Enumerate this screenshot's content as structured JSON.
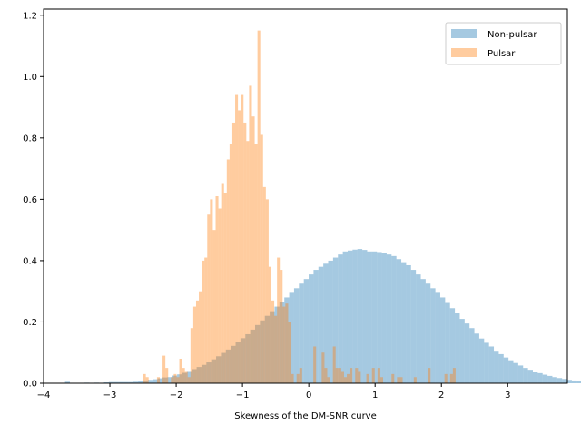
{
  "chart_data": {
    "type": "histogram",
    "title": "",
    "xlabel": "Skewness of the DM-SNR curve",
    "ylabel": "",
    "xlim": [
      -4.0,
      3.9
    ],
    "ylim": [
      0,
      1.22
    ],
    "xticks": [
      -4,
      -3,
      -2,
      -1,
      0,
      1,
      2,
      3
    ],
    "yticks": [
      0.0,
      0.2,
      0.4,
      0.6,
      0.8,
      1.0,
      1.2
    ],
    "grid": false,
    "legend": {
      "placement": "top-right"
    },
    "series": [
      {
        "name": "Non-pulsar",
        "color": "#1f77b4",
        "opacity": 0.4,
        "x_start": -3.75,
        "bin_width": 0.0735,
        "values": [
          0.0,
          0.005,
          0.0,
          0.0,
          0.0,
          0.002,
          0.0,
          0.002,
          0.0,
          0.003,
          0.004,
          0.004,
          0.004,
          0.004,
          0.004,
          0.005,
          0.007,
          0.009,
          0.011,
          0.013,
          0.016,
          0.019,
          0.02,
          0.025,
          0.029,
          0.034,
          0.04,
          0.046,
          0.053,
          0.06,
          0.068,
          0.078,
          0.088,
          0.099,
          0.11,
          0.122,
          0.134,
          0.147,
          0.16,
          0.175,
          0.19,
          0.205,
          0.22,
          0.235,
          0.25,
          0.265,
          0.28,
          0.295,
          0.31,
          0.325,
          0.34,
          0.355,
          0.37,
          0.38,
          0.39,
          0.4,
          0.41,
          0.42,
          0.43,
          0.433,
          0.436,
          0.438,
          0.435,
          0.43,
          0.43,
          0.428,
          0.425,
          0.42,
          0.415,
          0.405,
          0.395,
          0.385,
          0.37,
          0.355,
          0.34,
          0.325,
          0.31,
          0.295,
          0.28,
          0.262,
          0.245,
          0.228,
          0.21,
          0.195,
          0.18,
          0.162,
          0.146,
          0.132,
          0.12,
          0.106,
          0.095,
          0.084,
          0.075,
          0.066,
          0.058,
          0.05,
          0.044,
          0.038,
          0.033,
          0.028,
          0.024,
          0.02,
          0.017,
          0.014,
          0.011,
          0.009,
          0.007,
          0.005,
          0.004,
          0.003,
          0.002,
          0.002,
          0.001,
          0.001
        ]
      },
      {
        "name": "Pulsar",
        "color": "#ff7f0e",
        "opacity": 0.4,
        "x_start": -2.5,
        "bin_width": 0.0421,
        "values": [
          0.03,
          0.02,
          0.0,
          0.0,
          0.0,
          0.02,
          0.0,
          0.09,
          0.05,
          0.0,
          0.02,
          0.03,
          0.02,
          0.08,
          0.05,
          0.04,
          0.02,
          0.18,
          0.25,
          0.27,
          0.3,
          0.4,
          0.41,
          0.55,
          0.6,
          0.5,
          0.61,
          0.57,
          0.65,
          0.62,
          0.73,
          0.78,
          0.85,
          0.94,
          0.89,
          0.94,
          0.85,
          0.79,
          0.97,
          0.87,
          0.78,
          1.15,
          0.81,
          0.64,
          0.6,
          0.38,
          0.27,
          0.22,
          0.41,
          0.37,
          0.25,
          0.26,
          0.2,
          0.03,
          0.0,
          0.03,
          0.05,
          0.0,
          0.0,
          0.0,
          0.0,
          0.12,
          0.0,
          0.0,
          0.1,
          0.05,
          0.02,
          0.0,
          0.12,
          0.05,
          0.05,
          0.04,
          0.02,
          0.03,
          0.05,
          0.0,
          0.05,
          0.04,
          0.0,
          0.0,
          0.03,
          0.0,
          0.05,
          0.0,
          0.05,
          0.02,
          0.0,
          0.0,
          0.0,
          0.03,
          0.0,
          0.02,
          0.02,
          0.0,
          0.0,
          0.0,
          0.0,
          0.02,
          0.0,
          0.0,
          0.0,
          0.0,
          0.05,
          0.0,
          0.0,
          0.0,
          0.0,
          0.0,
          0.03,
          0.0,
          0.03,
          0.05,
          0.0
        ]
      }
    ]
  }
}
